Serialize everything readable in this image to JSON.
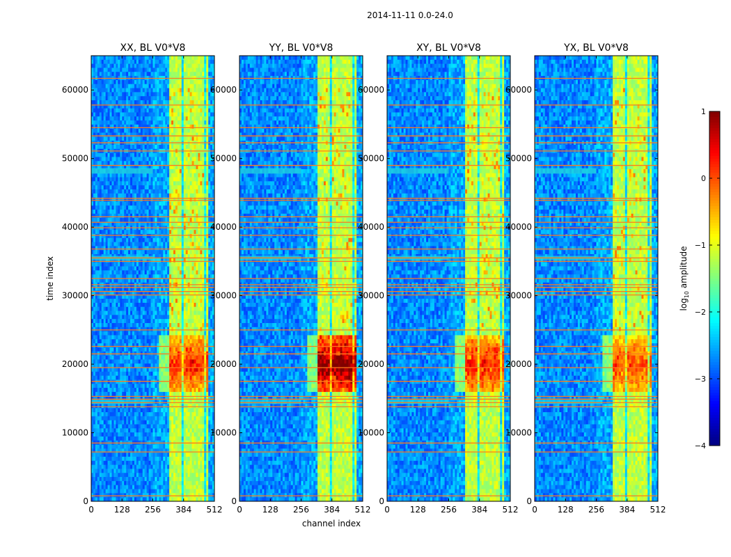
{
  "chart_data": {
    "type": "heatmap",
    "suptitle": "2014-11-11 0.0-24.0",
    "xlabel": "channel index",
    "ylabel": "time index",
    "xlim": [
      0,
      512
    ],
    "ylim": [
      0,
      65000
    ],
    "xticks": [
      "0",
      "128",
      "256",
      "384",
      "512"
    ],
    "xtick_values": [
      0,
      128,
      256,
      384,
      512
    ],
    "yticks": [
      "0",
      "10000",
      "20000",
      "30000",
      "40000",
      "50000",
      "60000"
    ],
    "ytick_values": [
      0,
      10000,
      20000,
      30000,
      40000,
      50000,
      60000
    ],
    "panels": [
      {
        "title": "XX, BL V0*V8",
        "pol": "XX",
        "burst_peak": 0.35
      },
      {
        "title": "YY, BL V0*V8",
        "pol": "YY",
        "burst_peak": 0.55
      },
      {
        "title": "XY, BL V0*V8",
        "pol": "XY",
        "burst_peak": 0.35
      },
      {
        "title": "YX, BL V0*V8",
        "pol": "YX",
        "burst_peak": 0.3
      }
    ],
    "bright_band_channels": [
      325,
      490
    ],
    "channel_gaps": [
      342,
      378,
      410,
      445,
      475
    ],
    "burst_time_range": [
      16000,
      24000
    ],
    "rfi_rows": [
      800,
      7200,
      8500,
      13800,
      14400,
      14900,
      15300,
      17500,
      19500,
      21500,
      22600,
      25000,
      30100,
      30600,
      31200,
      31600,
      32500,
      35000,
      35500,
      36800,
      38800,
      39900,
      40700,
      41500,
      43900,
      44200,
      49000,
      51100,
      52300,
      53300,
      54500,
      57800,
      61700
    ],
    "extra_strips": [
      [
        47800,
        48600
      ],
      [
        35200,
        35800
      ],
      [
        14200,
        14800
      ]
    ],
    "colorbar": {
      "label": "log10 amplitude",
      "label_base": "log",
      "label_sub": "10",
      "label_rest": " amplitude",
      "range": [
        -4,
        1
      ],
      "ticks": [
        1,
        0,
        -1,
        -2,
        -3,
        -4
      ],
      "tick_labels": [
        "1",
        "0",
        "−1",
        "−2",
        "−3",
        "−4"
      ],
      "colormap": "jet"
    }
  }
}
